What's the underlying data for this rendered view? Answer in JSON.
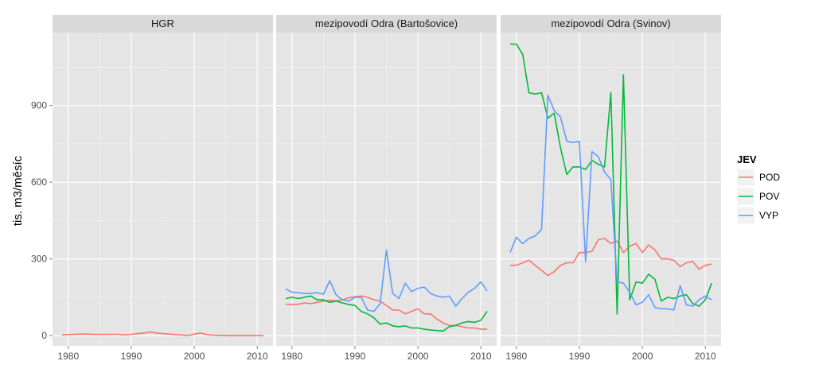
{
  "chart_data": {
    "type": "line",
    "ylabel": "tis. m3/měsíc",
    "xlabel": "",
    "x_ticks": [
      1980,
      1990,
      2000,
      2010
    ],
    "y_ticks": [
      0,
      300,
      600,
      900
    ],
    "xlim": [
      1977.5,
      2012.5
    ],
    "ylim": [
      -40,
      1185
    ],
    "grid": true,
    "legend": {
      "title": "JEV",
      "placement": "right",
      "entries": [
        "POD",
        "POV",
        "VYP"
      ]
    },
    "colors": {
      "POD": "#F8766D",
      "POV": "#00BA38",
      "VYP": "#619CFF"
    },
    "panels": [
      {
        "title": "HGR",
        "series": [
          {
            "name": "POD",
            "x": [
              1979,
              1980,
              1981,
              1982,
              1983,
              1984,
              1985,
              1986,
              1987,
              1988,
              1989,
              1990,
              1991,
              1992,
              1993,
              1994,
              1995,
              1996,
              1997,
              1998,
              1999,
              2000,
              2001,
              2002,
              2003,
              2004,
              2005,
              2006,
              2007,
              2008,
              2009,
              2010,
              2011
            ],
            "y": [
              3,
              4,
              5,
              6,
              6,
              5,
              5,
              5,
              5,
              5,
              3,
              5,
              8,
              10,
              14,
              10,
              8,
              6,
              4,
              3,
              0,
              6,
              10,
              4,
              2,
              1,
              1,
              0,
              0,
              0,
              0,
              0,
              0
            ]
          }
        ]
      },
      {
        "title": "mezipovodí Odra (Bartošovice)",
        "series": [
          {
            "name": "POD",
            "x": [
              1979,
              1980,
              1981,
              1982,
              1983,
              1984,
              1985,
              1986,
              1987,
              1988,
              1989,
              1990,
              1991,
              1992,
              1993,
              1994,
              1995,
              1996,
              1997,
              1998,
              1999,
              2000,
              2001,
              2002,
              2003,
              2004,
              2005,
              2006,
              2007,
              2008,
              2009,
              2010,
              2011
            ],
            "y": [
              123,
              122,
              123,
              128,
              125,
              130,
              135,
              138,
              136,
              140,
              148,
              152,
              155,
              150,
              140,
              135,
              118,
              100,
              100,
              85,
              95,
              105,
              85,
              85,
              65,
              50,
              40,
              40,
              35,
              30,
              30,
              25,
              25
            ]
          },
          {
            "name": "POV",
            "x": [
              1979,
              1980,
              1981,
              1982,
              1983,
              1984,
              1985,
              1986,
              1987,
              1988,
              1989,
              1990,
              1991,
              1992,
              1993,
              1994,
              1995,
              1996,
              1997,
              1998,
              1999,
              2000,
              2001,
              2002,
              2003,
              2004,
              2005,
              2006,
              2007,
              2008,
              2009,
              2010,
              2011
            ],
            "y": [
              145,
              150,
              145,
              150,
              155,
              140,
              140,
              130,
              135,
              128,
              122,
              118,
              95,
              85,
              70,
              45,
              50,
              38,
              35,
              38,
              30,
              30,
              25,
              22,
              20,
              18,
              35,
              40,
              50,
              55,
              52,
              60,
              95
            ]
          },
          {
            "name": "VYP",
            "x": [
              1979,
              1980,
              1981,
              1982,
              1983,
              1984,
              1985,
              1986,
              1987,
              1988,
              1989,
              1990,
              1991,
              1992,
              1993,
              1994,
              1995,
              1996,
              1997,
              1998,
              1999,
              2000,
              2001,
              2002,
              2003,
              2004,
              2005,
              2006,
              2007,
              2008,
              2009,
              2010,
              2011
            ],
            "y": [
              183,
              170,
              168,
              165,
              165,
              168,
              162,
              215,
              160,
              140,
              135,
              150,
              150,
              100,
              95,
              125,
              335,
              165,
              145,
              205,
              172,
              185,
              190,
              165,
              155,
              150,
              155,
              115,
              145,
              170,
              185,
              210,
              175
            ]
          }
        ]
      },
      {
        "title": "mezipovodí Odra (Svinov)",
        "series": [
          {
            "name": "POD",
            "x": [
              1979,
              1980,
              1981,
              1982,
              1983,
              1984,
              1985,
              1986,
              1987,
              1988,
              1989,
              1990,
              1991,
              1992,
              1993,
              1994,
              1995,
              1996,
              1997,
              1998,
              1999,
              2000,
              2001,
              2002,
              2003,
              2004,
              2005,
              2006,
              2007,
              2008,
              2009,
              2010,
              2011
            ],
            "y": [
              275,
              275,
              285,
              295,
              275,
              255,
              235,
              250,
              275,
              285,
              285,
              325,
              325,
              330,
              375,
              380,
              360,
              370,
              325,
              350,
              360,
              325,
              355,
              335,
              300,
              300,
              295,
              270,
              285,
              290,
              260,
              275,
              280
            ]
          },
          {
            "name": "POV",
            "x": [
              1979,
              1980,
              1981,
              1982,
              1983,
              1984,
              1985,
              1986,
              1987,
              1988,
              1989,
              1990,
              1991,
              1992,
              1993,
              1994,
              1995,
              1996,
              1997,
              1998,
              1999,
              2000,
              2001,
              2002,
              2003,
              2004,
              2005,
              2006,
              2007,
              2008,
              2009,
              2010,
              2011
            ],
            "y": [
              1140,
              1140,
              1100,
              950,
              945,
              950,
              850,
              870,
              735,
              630,
              660,
              660,
              650,
              685,
              670,
              660,
              950,
              85,
              1020,
              140,
              210,
              205,
              240,
              220,
              135,
              150,
              145,
              155,
              160,
              125,
              115,
              140,
              205
            ]
          },
          {
            "name": "VYP",
            "x": [
              1979,
              1980,
              1981,
              1982,
              1983,
              1984,
              1985,
              1986,
              1987,
              1988,
              1989,
              1990,
              1991,
              1992,
              1993,
              1994,
              1995,
              1996,
              1997,
              1998,
              1999,
              2000,
              2001,
              2002,
              2003,
              2004,
              2005,
              2006,
              2007,
              2008,
              2009,
              2010,
              2011
            ],
            "y": [
              325,
              385,
              360,
              380,
              390,
              415,
              940,
              880,
              855,
              760,
              755,
              760,
              290,
              720,
              700,
              640,
              610,
              210,
              205,
              170,
              120,
              130,
              160,
              110,
              105,
              105,
              100,
              195,
              120,
              115,
              140,
              155,
              140
            ]
          }
        ]
      }
    ]
  }
}
